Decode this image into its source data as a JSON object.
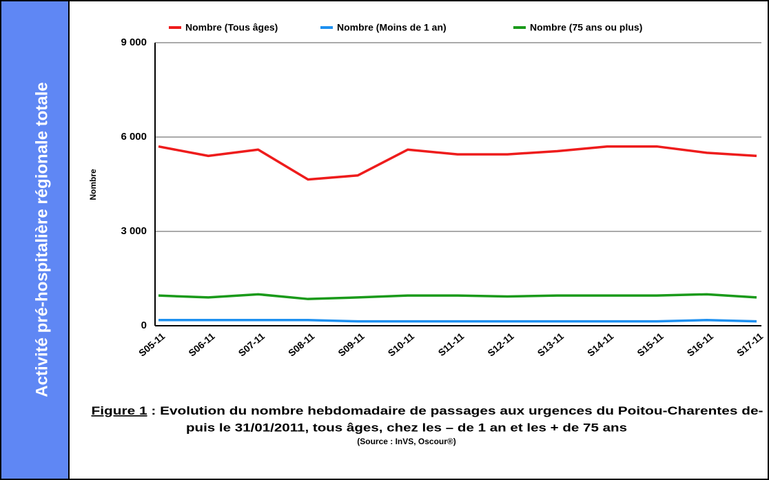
{
  "sidebar_title": "Activité pré-hospitalière régionale totale",
  "chart_data": {
    "type": "line",
    "y_label": "Nombre",
    "categories": [
      "S05-11",
      "S06-11",
      "S07-11",
      "S08-11",
      "S09-11",
      "S10-11",
      "S11-11",
      "S12-11",
      "S13-11",
      "S14-11",
      "S15-11",
      "S16-11",
      "S17-11"
    ],
    "series": [
      {
        "name": "Nombre (Tous âges)",
        "color": "#ee1c1c",
        "values": [
          5700,
          5400,
          5600,
          4650,
          4780,
          5600,
          5450,
          5450,
          5550,
          5700,
          5700,
          5500,
          5400
        ]
      },
      {
        "name": "Nombre (Moins de 1 an)",
        "color": "#1e90f0",
        "values": [
          180,
          180,
          180,
          180,
          140,
          140,
          140,
          140,
          140,
          140,
          140,
          180,
          140
        ]
      },
      {
        "name": "Nombre (75 ans ou plus)",
        "color": "#1a9a1a",
        "values": [
          960,
          900,
          1000,
          850,
          900,
          960,
          960,
          930,
          960,
          960,
          960,
          1000,
          900
        ]
      }
    ],
    "ylim": [
      0,
      9000
    ],
    "yticks": [
      {
        "value": 0,
        "label": "0"
      },
      {
        "value": 3000,
        "label": "3 000"
      },
      {
        "value": 6000,
        "label": "6 000"
      },
      {
        "value": 9000,
        "label": "9 000"
      }
    ],
    "grid": true,
    "legend": "top"
  },
  "caption": {
    "label": "Figure 1",
    "line1": " : Evolution du nombre hebdomadaire de passages aux urgences du Poitou-Charentes de-",
    "line2": "puis le 31/01/2011, tous âges, chez les – de 1 an et les  + de 75 ans",
    "source": "(Source : InVS, Oscour®)"
  }
}
